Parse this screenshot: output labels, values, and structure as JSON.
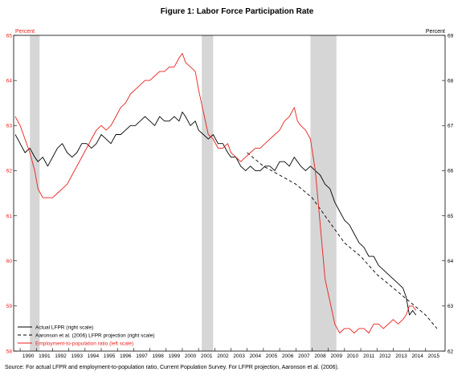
{
  "chart_data": {
    "type": "line",
    "title": "Figure 1: Labor Force Participation Rate",
    "left_axis": {
      "unit_label": "Percent",
      "range": [
        58,
        65
      ],
      "ticks": [
        "58",
        "59",
        "60",
        "61",
        "62",
        "63",
        "64",
        "65"
      ],
      "color": "#e8201b"
    },
    "right_axis": {
      "unit_label": "Percent",
      "range": [
        62,
        69
      ],
      "ticks": [
        "62",
        "63",
        "64",
        "65",
        "66",
        "67",
        "68",
        "69"
      ],
      "color": "#000000"
    },
    "x_axis": {
      "range": [
        1989.6,
        2016.2
      ],
      "ticks": [
        "1990",
        "1991",
        "1992",
        "1993",
        "1994",
        "1995",
        "1996",
        "1997",
        "1998",
        "1999",
        "2000",
        "2001",
        "2002",
        "2003",
        "2004",
        "2005",
        "2006",
        "2007",
        "2008",
        "2009",
        "2010",
        "2011",
        "2012",
        "2013",
        "2014",
        "2015"
      ]
    },
    "recessions": [
      [
        1990.6,
        1991.2
      ],
      [
        2001.2,
        2001.9
      ],
      [
        2007.9,
        2009.5
      ]
    ],
    "legend": {
      "placement": "bottom-left",
      "entries": [
        "Actual LFPR (right scale)",
        "Aaronson et al. (2006) LFPR projection (right scale)",
        "Employment-to-population ratio (left scale)"
      ]
    },
    "series": [
      {
        "name": "Actual LFPR (right scale)",
        "axis": "right",
        "color": "#000000",
        "style": "solid",
        "x": [
          1989.7,
          1990.0,
          1990.3,
          1990.6,
          1990.9,
          1991.1,
          1991.4,
          1991.7,
          1992.0,
          1992.3,
          1992.6,
          1992.9,
          1993.2,
          1993.5,
          1993.8,
          1994.1,
          1994.4,
          1994.7,
          1995.0,
          1995.3,
          1995.6,
          1995.9,
          1996.2,
          1996.5,
          1996.8,
          1997.1,
          1997.4,
          1997.7,
          1998.0,
          1998.3,
          1998.6,
          1998.9,
          1999.2,
          1999.5,
          1999.8,
          2000.0,
          2000.2,
          2000.5,
          2000.8,
          2001.0,
          2001.3,
          2001.6,
          2001.9,
          2002.2,
          2002.5,
          2002.8,
          2003.0,
          2003.3,
          2003.6,
          2003.9,
          2004.2,
          2004.5,
          2004.8,
          2005.1,
          2005.4,
          2005.7,
          2006.0,
          2006.3,
          2006.6,
          2006.9,
          2007.1,
          2007.3,
          2007.6,
          2007.9,
          2008.2,
          2008.5,
          2008.8,
          2009.1,
          2009.4,
          2009.7,
          2010.0,
          2010.3,
          2010.6,
          2010.9,
          2011.2,
          2011.5,
          2011.8,
          2012.1,
          2012.4,
          2012.7,
          2013.0,
          2013.3,
          2013.6,
          2013.8,
          2014.0,
          2014.2,
          2014.4
        ],
        "values": [
          66.8,
          66.6,
          66.4,
          66.5,
          66.3,
          66.2,
          66.3,
          66.1,
          66.3,
          66.5,
          66.6,
          66.4,
          66.3,
          66.4,
          66.6,
          66.6,
          66.5,
          66.6,
          66.8,
          66.7,
          66.6,
          66.8,
          66.8,
          66.9,
          67.0,
          67.0,
          67.1,
          67.2,
          67.1,
          67.0,
          67.2,
          67.1,
          67.1,
          67.2,
          67.1,
          67.3,
          67.2,
          67.0,
          67.1,
          66.9,
          66.8,
          66.7,
          66.8,
          66.6,
          66.6,
          66.4,
          66.3,
          66.3,
          66.1,
          66.0,
          66.1,
          66.0,
          66.0,
          66.1,
          66.1,
          66.0,
          66.2,
          66.2,
          66.1,
          66.3,
          66.2,
          66.1,
          66.0,
          66.1,
          66.0,
          65.9,
          65.7,
          65.6,
          65.3,
          65.1,
          64.9,
          64.8,
          64.6,
          64.4,
          64.3,
          64.1,
          64.1,
          63.9,
          63.8,
          63.7,
          63.6,
          63.5,
          63.4,
          63.2,
          62.8,
          62.9,
          62.8
        ]
      },
      {
        "name": "Aaronson et al. (2006) LFPR projection (right scale)",
        "axis": "right",
        "color": "#000000",
        "style": "dashed",
        "x": [
          2004.0,
          2005.0,
          2006.0,
          2007.0,
          2008.0,
          2009.0,
          2010.0,
          2011.0,
          2012.0,
          2013.0,
          2014.0,
          2015.0,
          2015.7
        ],
        "values": [
          66.4,
          66.1,
          65.9,
          65.7,
          65.4,
          64.9,
          64.4,
          64.1,
          63.7,
          63.4,
          63.1,
          62.8,
          62.5
        ]
      },
      {
        "name": "Employment-to-population ratio (left scale)",
        "axis": "left",
        "color": "#e8201b",
        "style": "solid",
        "x": [
          1989.7,
          1990.0,
          1990.3,
          1990.6,
          1990.9,
          1991.1,
          1991.4,
          1991.7,
          1992.0,
          1992.3,
          1992.6,
          1992.9,
          1993.2,
          1993.5,
          1993.8,
          1994.1,
          1994.4,
          1994.7,
          1995.0,
          1995.3,
          1995.6,
          1995.9,
          1996.2,
          1996.5,
          1996.8,
          1997.1,
          1997.4,
          1997.7,
          1998.0,
          1998.3,
          1998.6,
          1998.9,
          1999.2,
          1999.5,
          1999.8,
          2000.0,
          2000.2,
          2000.5,
          2000.8,
          2001.0,
          2001.3,
          2001.6,
          2001.9,
          2002.2,
          2002.5,
          2002.8,
          2003.0,
          2003.3,
          2003.6,
          2003.9,
          2004.2,
          2004.5,
          2004.8,
          2005.1,
          2005.4,
          2005.7,
          2006.0,
          2006.3,
          2006.6,
          2006.9,
          2007.1,
          2007.3,
          2007.6,
          2007.9,
          2008.2,
          2008.5,
          2008.8,
          2009.1,
          2009.4,
          2009.7,
          2010.0,
          2010.3,
          2010.6,
          2010.9,
          2011.2,
          2011.5,
          2011.8,
          2012.1,
          2012.4,
          2012.7,
          2013.0,
          2013.3,
          2013.6,
          2013.8,
          2014.0,
          2014.2,
          2014.4
        ],
        "values": [
          63.2,
          63.0,
          62.7,
          62.4,
          62.0,
          61.6,
          61.4,
          61.4,
          61.4,
          61.5,
          61.6,
          61.7,
          61.9,
          62.1,
          62.3,
          62.5,
          62.7,
          62.9,
          63.0,
          62.9,
          63.0,
          63.2,
          63.4,
          63.5,
          63.7,
          63.8,
          63.9,
          64.0,
          64.0,
          64.1,
          64.2,
          64.2,
          64.3,
          64.3,
          64.5,
          64.6,
          64.4,
          64.3,
          64.2,
          63.8,
          63.3,
          62.8,
          62.7,
          62.5,
          62.5,
          62.6,
          62.4,
          62.3,
          62.2,
          62.3,
          62.4,
          62.5,
          62.5,
          62.6,
          62.7,
          62.8,
          62.9,
          63.1,
          63.2,
          63.4,
          63.1,
          63.0,
          62.9,
          62.7,
          62.0,
          60.8,
          59.6,
          59.1,
          58.6,
          58.4,
          58.5,
          58.5,
          58.4,
          58.5,
          58.5,
          58.4,
          58.6,
          58.6,
          58.5,
          58.6,
          58.7,
          58.6,
          58.7,
          58.8,
          59.0,
          59.0,
          58.9
        ]
      }
    ]
  },
  "source_note": "Source:  For actual LFPR and employment-to-population ratio, Current Population Survey. For LFPR projection, Aaronson et al. (2006)."
}
